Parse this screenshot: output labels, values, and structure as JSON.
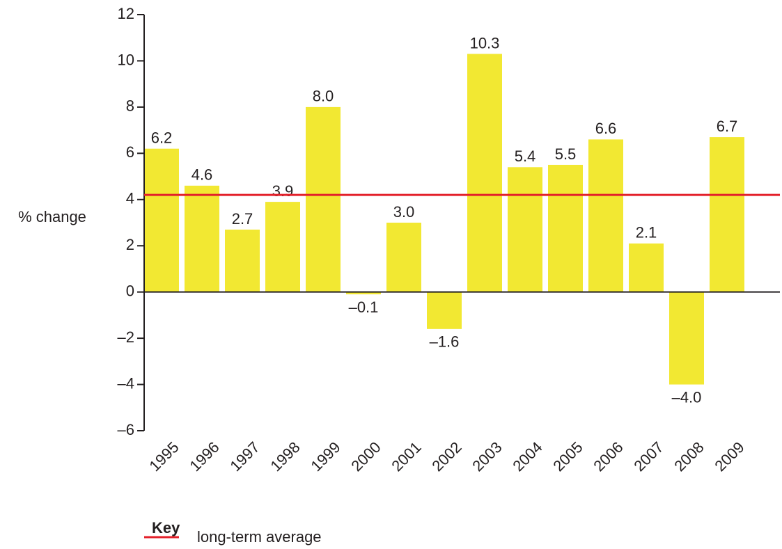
{
  "chart_data": {
    "type": "bar",
    "y_label": "% change",
    "categories": [
      "1995",
      "1996",
      "1997",
      "1998",
      "1999",
      "2000",
      "2001",
      "2002",
      "2003",
      "2004",
      "2005",
      "2006",
      "2007",
      "2008",
      "2009"
    ],
    "values": [
      6.2,
      4.6,
      2.7,
      3.9,
      8.0,
      -0.1,
      3.0,
      -1.6,
      10.3,
      5.4,
      5.5,
      6.6,
      2.1,
      -4.0,
      6.7
    ],
    "value_labels": [
      "6.2",
      "4.6",
      "2.7",
      "3.9",
      "8.0",
      "–0.1",
      "3.0",
      "–1.6",
      "10.3",
      "5.4",
      "5.5",
      "6.6",
      "2.1",
      "–4.0",
      "6.7"
    ],
    "color": "#f2e832",
    "ylim": [
      -6,
      12
    ],
    "yticks": [
      {
        "value": -6,
        "label": "–6"
      },
      {
        "value": -4,
        "label": "–4"
      },
      {
        "value": -2,
        "label": "–2"
      },
      0,
      2,
      4,
      6,
      8,
      10,
      12
    ],
    "average": {
      "name": "long-term average",
      "value": 4.2,
      "color": "#e3202a"
    },
    "legend_title": "Key"
  }
}
